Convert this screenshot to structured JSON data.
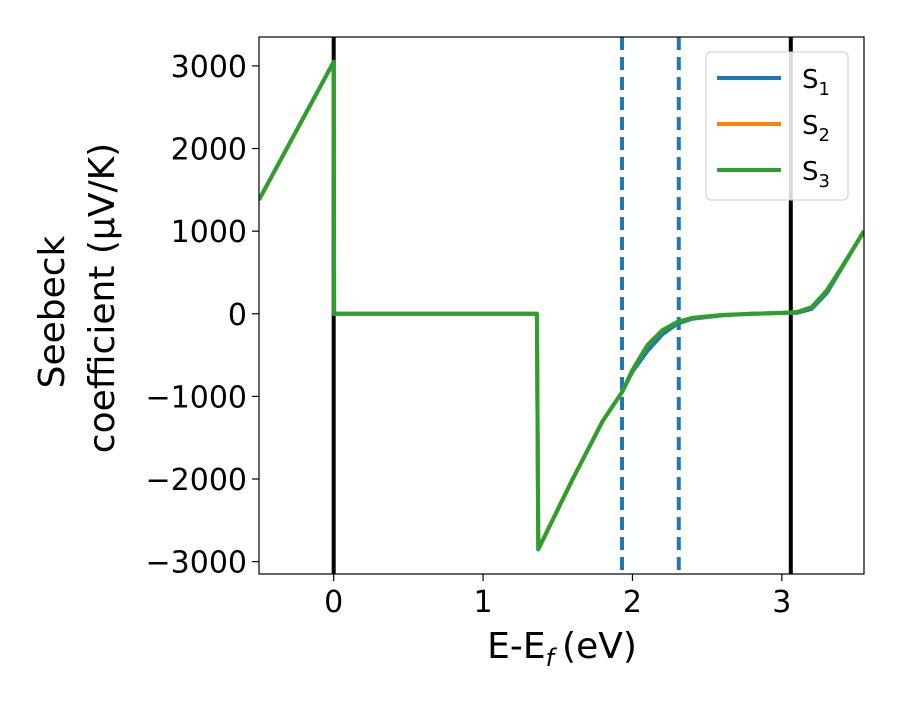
{
  "chart_data": {
    "type": "line",
    "xlabel": "E-E",
    "xlabel_sub": "f",
    "xlabel_unit": "(eV)",
    "ylabel_line1": "Seebeck",
    "ylabel_line2": "coefficient  (μV/K)",
    "xlim": [
      -0.5,
      3.55
    ],
    "ylim": [
      -3150,
      3350
    ],
    "x_ticks": [
      0,
      1,
      2,
      3
    ],
    "x_tick_labels": [
      "0",
      "1",
      "2",
      "3"
    ],
    "y_ticks": [
      3000,
      2000,
      1000,
      0,
      -1000,
      -2000,
      -3000
    ],
    "y_tick_labels": [
      "3000",
      "2000",
      "1000",
      "0",
      "−1000",
      "−2000",
      "−3000"
    ],
    "grid": false,
    "legend_position": "top-right",
    "series": [
      {
        "name": "S",
        "name_sub": "1",
        "color": "#1f77b4",
        "x": [
          -0.5,
          0.0,
          0.003,
          0.01,
          0.5,
          1.0,
          1.35,
          1.36,
          1.37,
          1.6,
          1.8,
          1.93,
          2.0,
          2.1,
          2.2,
          2.3,
          2.4,
          2.6,
          2.8,
          3.0,
          3.1,
          3.2,
          3.3,
          3.4,
          3.55
        ],
        "y": [
          1380,
          3050,
          0,
          0,
          0,
          0,
          0,
          0,
          -2850,
          -2000,
          -1300,
          -950,
          -700,
          -450,
          -250,
          -120,
          -60,
          -20,
          0,
          10,
          10,
          60,
          250,
          550,
          1000
        ]
      },
      {
        "name": "S",
        "name_sub": "2",
        "color": "#ff7f0e",
        "x": [
          -0.5,
          0.0,
          0.003,
          0.01,
          0.5,
          1.0,
          1.35,
          1.36,
          1.37,
          1.6,
          1.8,
          1.93,
          2.0,
          2.1,
          2.2,
          2.3,
          2.4,
          2.6,
          2.8,
          3.0,
          3.1,
          3.2,
          3.3,
          3.4,
          3.55
        ],
        "y": [
          1380,
          3050,
          0,
          0,
          0,
          0,
          0,
          0,
          -2850,
          -2000,
          -1300,
          -950,
          -680,
          -380,
          -200,
          -100,
          -50,
          -15,
          0,
          10,
          20,
          80,
          280,
          560,
          1000
        ]
      },
      {
        "name": "S",
        "name_sub": "3",
        "color": "#2ca02c",
        "x": [
          -0.5,
          0.0,
          0.003,
          0.01,
          0.5,
          1.0,
          1.35,
          1.36,
          1.37,
          1.6,
          1.8,
          1.93,
          2.0,
          2.1,
          2.2,
          2.3,
          2.4,
          2.6,
          2.8,
          3.0,
          3.1,
          3.2,
          3.3,
          3.4,
          3.55
        ],
        "y": [
          1380,
          3050,
          0,
          0,
          0,
          0,
          0,
          0,
          -2850,
          -2000,
          -1300,
          -950,
          -680,
          -380,
          -200,
          -100,
          -50,
          -15,
          0,
          10,
          20,
          80,
          280,
          560,
          1000
        ]
      }
    ],
    "vlines": [
      {
        "x": 0.0,
        "color": "#000000",
        "style": "solid"
      },
      {
        "x": 3.06,
        "color": "#000000",
        "style": "solid"
      },
      {
        "x": 1.93,
        "color": "#1f77b4",
        "style": "dashed"
      },
      {
        "x": 2.31,
        "color": "#1f77b4",
        "style": "dashed"
      }
    ]
  }
}
